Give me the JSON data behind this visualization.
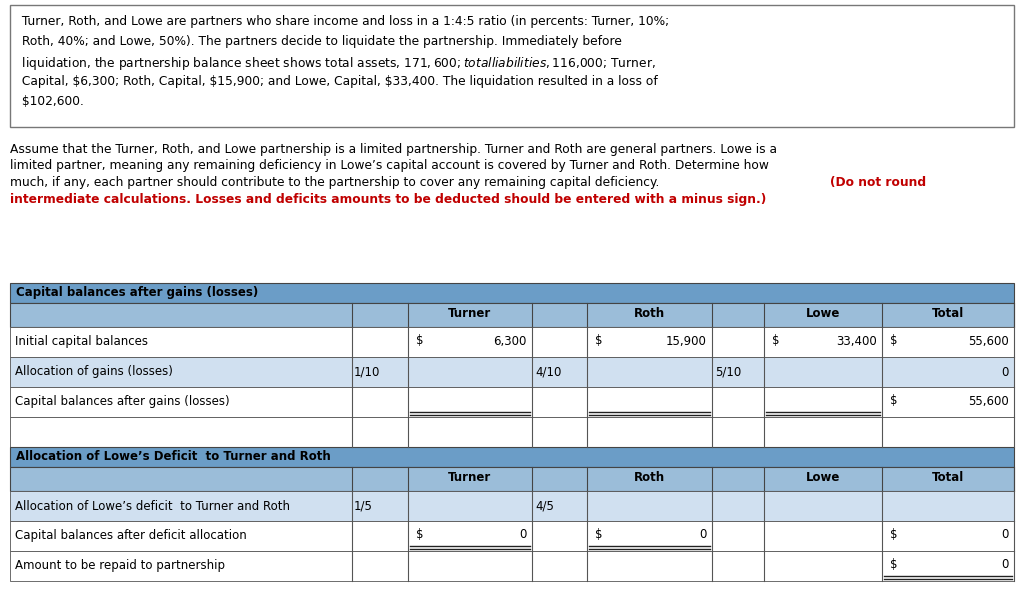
{
  "bg_color": "#ffffff",
  "box_text_lines": [
    " Turner, Roth, and Lowe are partners who share income and loss in a 1:4:5 ratio (in percents: Turner, 10%;",
    " Roth, 40%; and Lowe, 50%). The partners decide to liquidate the partnership. Immediately before",
    " liquidation, the partnership balance sheet shows total assets, $171,600; total liabilities, $116,000; Turner,",
    " Capital, $6,300; Roth, Capital, $15,900; and Lowe, Capital, $33,400. The liquidation resulted in a loss of",
    " $102,600."
  ],
  "para_black_lines": [
    "Assume that the Turner, Roth, and Lowe partnership is a limited partnership. Turner and Roth are general partners. Lowe is a",
    "limited partner, meaning any remaining deficiency in Lowe’s capital account is covered by Turner and Roth. Determine how",
    "much, if any, each partner should contribute to the partnership to cover any remaining capital deficiency. (Do not round"
  ],
  "para_red_line": "intermediate calculations. Losses and deficits amounts to be deducted should be entered with a minus sign.)",
  "para_black_end": "(Do not round",
  "header_color": "#6b9dc7",
  "subheader_color": "#9bbdd9",
  "row_light": "#d0e0f0",
  "row_white": "#ffffff",
  "table1_title": "Capital balances after gains (losses)",
  "table2_title": "Allocation of Lowe’s Deficit  to Turner and Roth",
  "col_names": [
    "Turner",
    "Roth",
    "Lowe",
    "Total"
  ],
  "s1_rows": [
    [
      "Initial capital balances",
      "",
      "$",
      "6,300",
      "$",
      "15,900",
      "$",
      "33,400",
      "$",
      "55,600"
    ],
    [
      "Allocation of gains (losses)",
      "1/10",
      "",
      "",
      "",
      "",
      "",
      "",
      "",
      "0"
    ],
    [
      "Capital balances after gains (losses)",
      "",
      "",
      "",
      "",
      "",
      "",
      "",
      "$",
      "55,600"
    ],
    [
      "",
      "",
      "",
      "",
      "",
      "",
      "",
      "",
      "",
      ""
    ]
  ],
  "s1_row_ratio_col": [
    "",
    "1/10",
    "",
    ""
  ],
  "s1_turner_ratio": [
    "",
    "4/10",
    "",
    ""
  ],
  "s1_roth_ratio": [
    "",
    "5/10",
    "",
    ""
  ],
  "s2_rows": [
    [
      "Allocation of Lowe’s deficit  to Turner and Roth",
      "1/5",
      "",
      "",
      "",
      "",
      "",
      "",
      "",
      ""
    ],
    [
      "Capital balances after deficit allocation",
      "",
      "$",
      "0",
      "$",
      "0",
      "",
      "",
      "$",
      "0"
    ],
    [
      "Amount to be repaid to partnership",
      "",
      "",
      "",
      "",
      "",
      "",
      "",
      "$",
      "0"
    ]
  ],
  "s2_turner_ratio": [
    "4/5",
    "",
    ""
  ],
  "s2_roth_ratio": [
    "",
    "",
    ""
  ]
}
